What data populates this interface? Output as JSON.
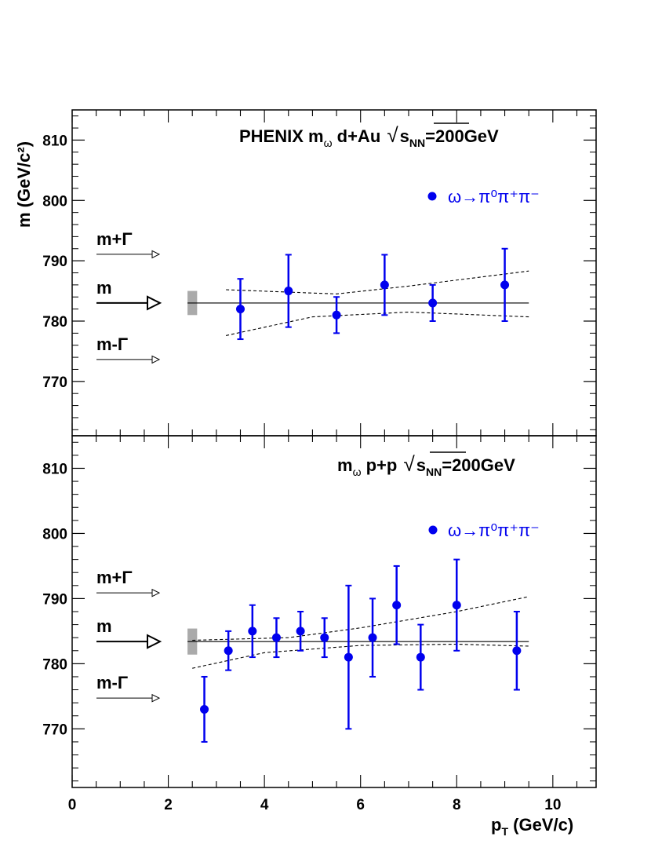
{
  "colors": {
    "data": "#0000ee",
    "sys_box": "#aaaaaa",
    "axis": "#000000"
  },
  "chart_data": [
    {
      "type": "scatter",
      "title_parts": [
        "PHENIX m",
        "ω",
        " d+Au ",
        "s",
        "NN",
        "=200GeV"
      ],
      "ylabel": "m (GeV/c²)",
      "xlim": [
        0,
        10.9
      ],
      "ylim": [
        761,
        815
      ],
      "yticks": [
        770,
        780,
        790,
        800,
        810
      ],
      "legend": "ω→π⁰π⁺π⁻",
      "reference_mass": 783,
      "width_markers": [
        "m+Γ",
        "m",
        "m-Γ"
      ],
      "points": [
        {
          "x": 3.5,
          "y": 782,
          "lo": 777,
          "hi": 787
        },
        {
          "x": 4.5,
          "y": 785,
          "lo": 779,
          "hi": 791
        },
        {
          "x": 5.5,
          "y": 781,
          "lo": 778,
          "hi": 784
        },
        {
          "x": 6.5,
          "y": 786,
          "lo": 781,
          "hi": 791
        },
        {
          "x": 7.5,
          "y": 783,
          "lo": 780,
          "hi": 786
        },
        {
          "x": 9.0,
          "y": 786,
          "lo": 780,
          "hi": 792
        }
      ],
      "band_upper": [
        [
          3.2,
          785.2
        ],
        [
          5.5,
          784.5
        ],
        [
          7.0,
          785.8
        ],
        [
          9.5,
          788.3
        ]
      ],
      "band_lower": [
        [
          3.2,
          777.6
        ],
        [
          5.0,
          780.7
        ],
        [
          7.0,
          781.5
        ],
        [
          9.5,
          780.7
        ]
      ]
    },
    {
      "type": "scatter",
      "title_parts": [
        "m",
        "ω",
        " p+p ",
        "s",
        "NN",
        "=200GeV"
      ],
      "xlabel": "p_T (GeV/c)",
      "xlim": [
        0,
        10.9
      ],
      "ylim": [
        761,
        815
      ],
      "xticks": [
        0,
        2,
        4,
        6,
        8,
        10
      ],
      "yticks": [
        770,
        780,
        790,
        800,
        810
      ],
      "legend": "ω→π⁰π⁺π⁻",
      "reference_mass": 783.4,
      "width_markers": [
        "m+Γ",
        "m",
        "m-Γ"
      ],
      "points": [
        {
          "x": 2.75,
          "y": 773,
          "lo": 768,
          "hi": 778
        },
        {
          "x": 3.25,
          "y": 782,
          "lo": 779,
          "hi": 785
        },
        {
          "x": 3.75,
          "y": 785,
          "lo": 781,
          "hi": 789
        },
        {
          "x": 4.25,
          "y": 784,
          "lo": 781,
          "hi": 787
        },
        {
          "x": 4.75,
          "y": 785,
          "lo": 782,
          "hi": 788
        },
        {
          "x": 5.25,
          "y": 784,
          "lo": 781,
          "hi": 787
        },
        {
          "x": 5.75,
          "y": 781,
          "lo": 770,
          "hi": 792
        },
        {
          "x": 6.25,
          "y": 784,
          "lo": 778,
          "hi": 790
        },
        {
          "x": 6.75,
          "y": 789,
          "lo": 783,
          "hi": 795
        },
        {
          "x": 7.25,
          "y": 781,
          "lo": 776,
          "hi": 786
        },
        {
          "x": 8.0,
          "y": 789,
          "lo": 782,
          "hi": 796
        },
        {
          "x": 9.25,
          "y": 782,
          "lo": 776,
          "hi": 788
        }
      ],
      "band_upper": [
        [
          2.5,
          783.6
        ],
        [
          4.5,
          784.0
        ],
        [
          6.0,
          785.5
        ],
        [
          8.0,
          788.0
        ],
        [
          9.5,
          790.3
        ]
      ],
      "band_lower": [
        [
          2.5,
          779.3
        ],
        [
          4.0,
          781.7
        ],
        [
          6.0,
          782.8
        ],
        [
          8.0,
          783.0
        ],
        [
          9.5,
          782.7
        ]
      ]
    }
  ]
}
